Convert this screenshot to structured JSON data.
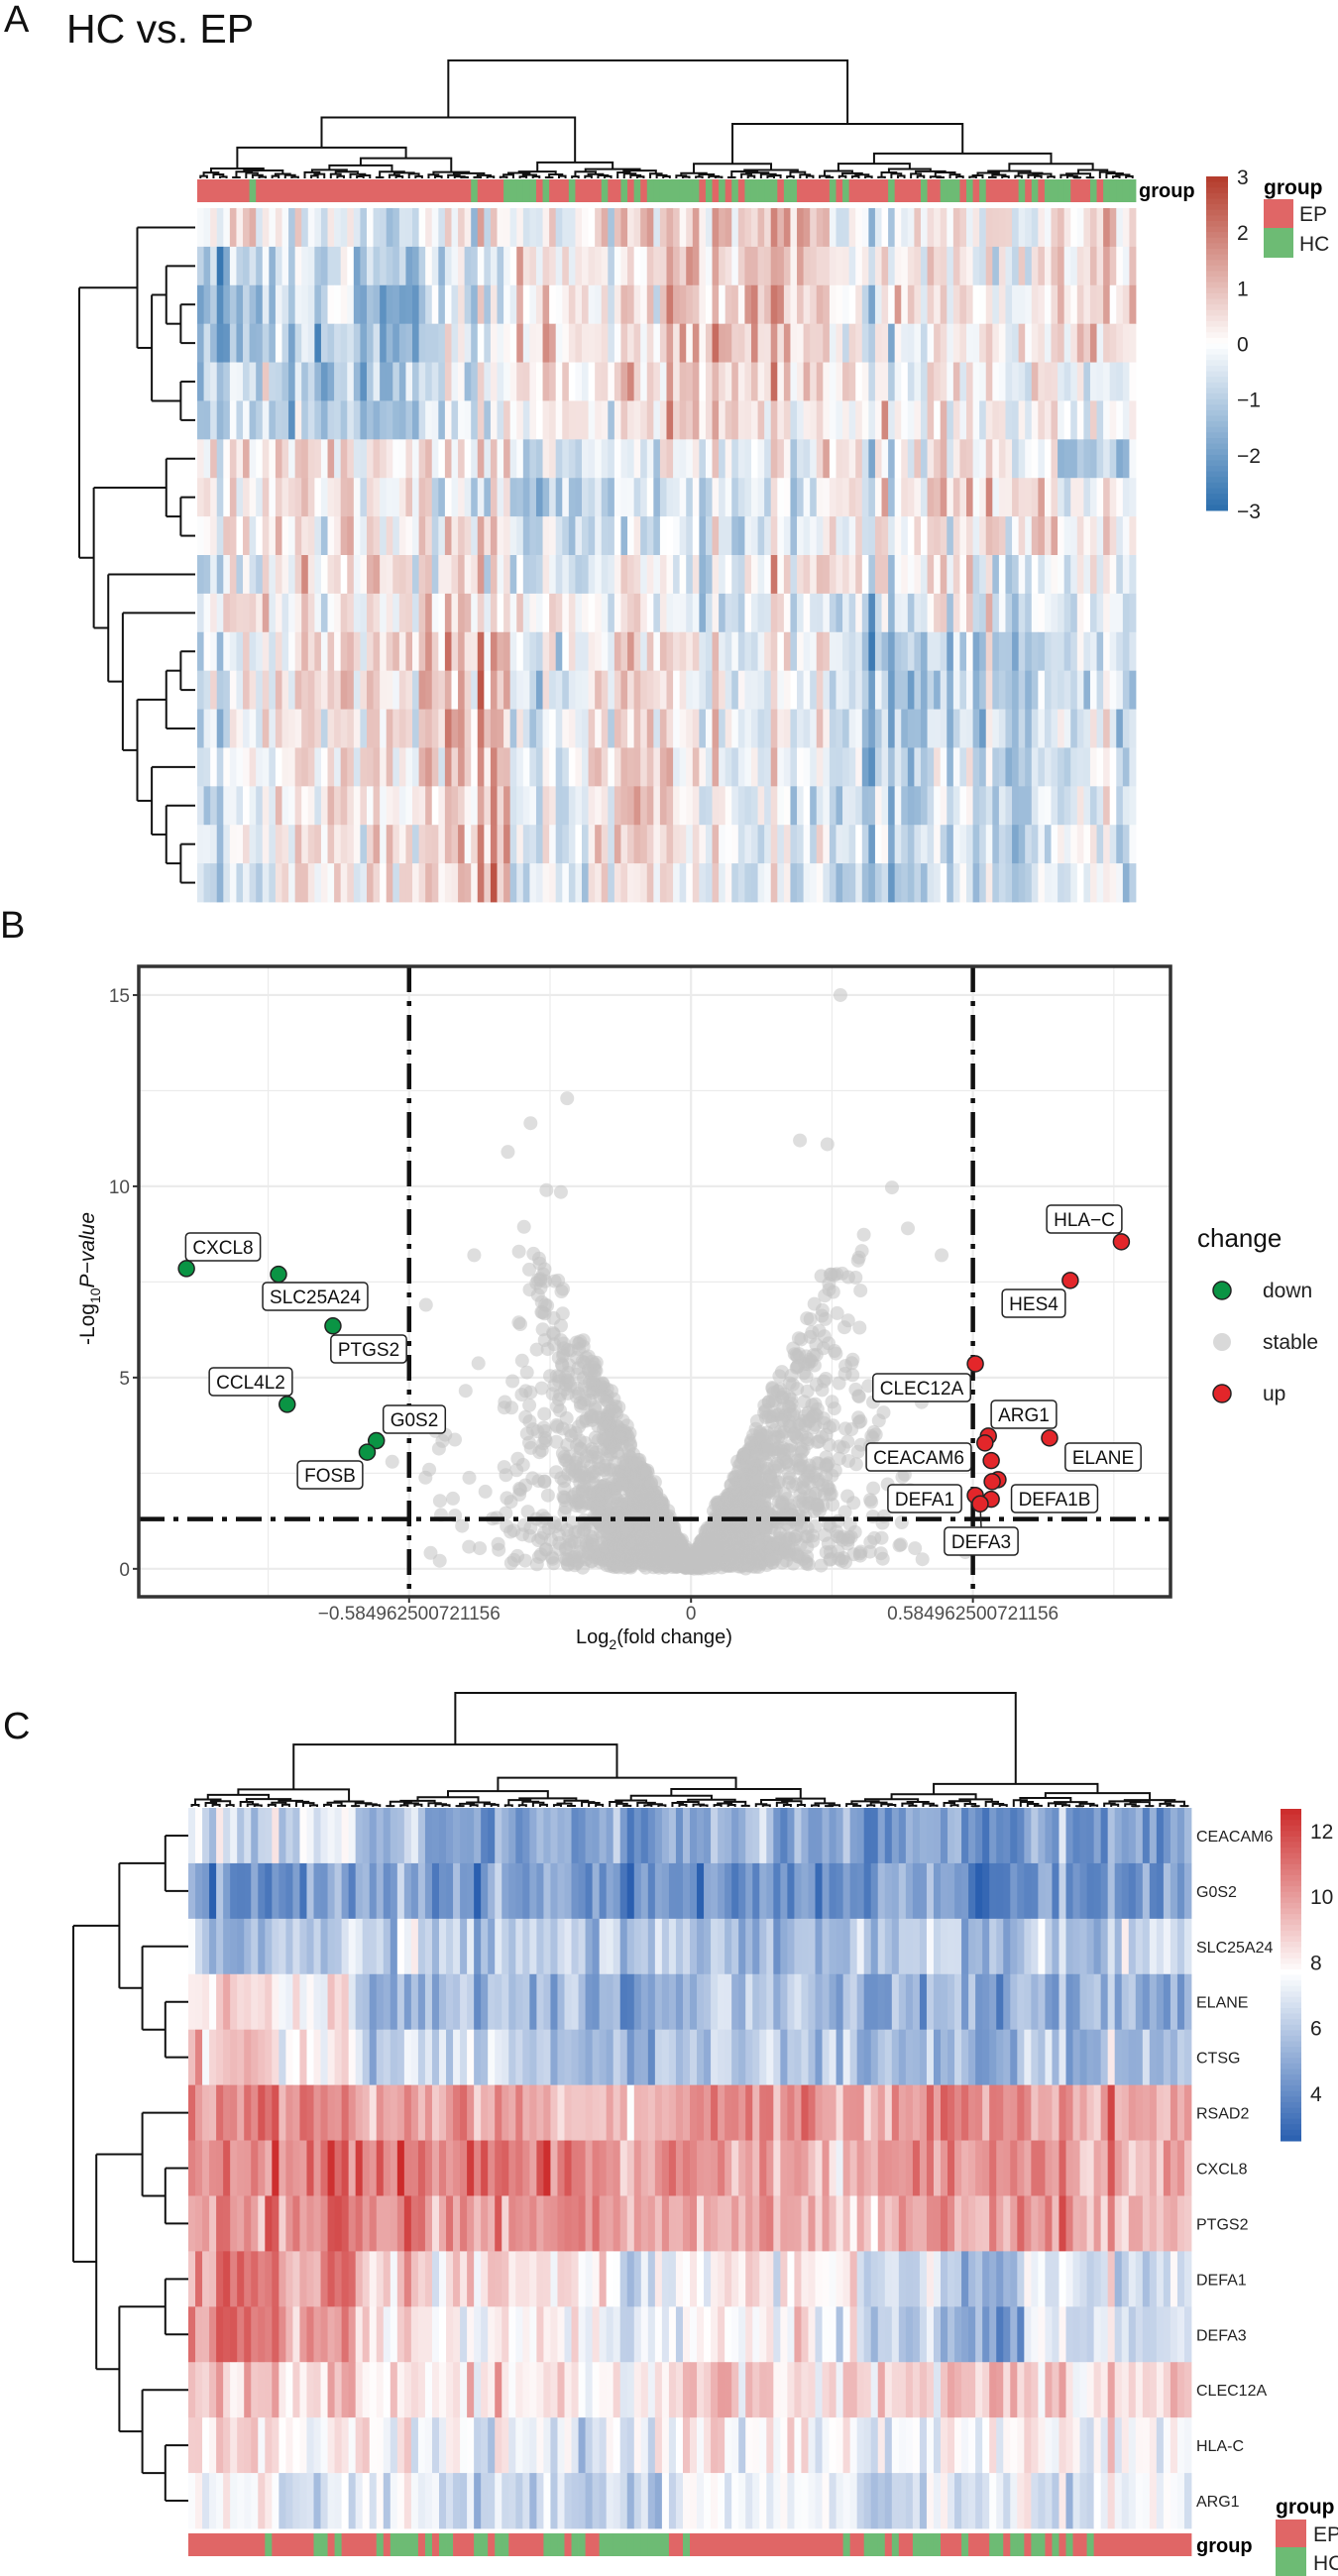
{
  "chart_data": [
    {
      "type": "heatmap",
      "panel_letter": "A",
      "title": "HC vs. EP",
      "annotation_label": "group",
      "legend": {
        "title": "group",
        "items": [
          {
            "label": "EP",
            "color": "#e06666"
          },
          {
            "label": "HC",
            "color": "#6dbb74"
          }
        ]
      },
      "colorbar": {
        "range": [
          -3,
          3
        ],
        "ticks": [
          3,
          2,
          1,
          0,
          -1,
          -2,
          -3
        ],
        "tick_labels": [
          "3",
          "2",
          "1",
          "0",
          "−1",
          "−2",
          "−3"
        ],
        "colors": [
          "#2a6ead",
          "#ffffff",
          "#b43a2a"
        ]
      },
      "group_runs": [
        [
          "EP",
          8
        ],
        [
          "HC",
          1
        ],
        [
          "EP",
          33
        ],
        [
          "HC",
          1
        ],
        [
          "EP",
          4
        ],
        [
          "HC",
          5
        ],
        [
          "EP",
          1
        ],
        [
          "HC",
          1
        ],
        [
          "EP",
          3
        ],
        [
          "HC",
          1
        ],
        [
          "EP",
          4
        ],
        [
          "HC",
          1
        ],
        [
          "EP",
          2
        ],
        [
          "HC",
          1
        ],
        [
          "EP",
          1
        ],
        [
          "HC",
          1
        ],
        [
          "EP",
          1
        ],
        [
          "HC",
          8
        ],
        [
          "EP",
          1
        ],
        [
          "HC",
          1
        ],
        [
          "EP",
          1
        ],
        [
          "HC",
          1
        ],
        [
          "EP",
          1
        ],
        [
          "HC",
          1
        ],
        [
          "EP",
          1
        ],
        [
          "HC",
          5
        ],
        [
          "EP",
          1
        ],
        [
          "HC",
          2
        ],
        [
          "EP",
          5
        ],
        [
          "HC",
          1
        ],
        [
          "EP",
          1
        ],
        [
          "HC",
          1
        ],
        [
          "EP",
          6
        ],
        [
          "HC",
          1
        ],
        [
          "EP",
          4
        ],
        [
          "HC",
          1
        ],
        [
          "EP",
          2
        ],
        [
          "HC",
          3
        ],
        [
          "EP",
          1
        ],
        [
          "HC",
          1
        ],
        [
          "EP",
          1
        ],
        [
          "HC",
          1
        ],
        [
          "EP",
          5
        ],
        [
          "HC",
          1
        ],
        [
          "EP",
          1
        ],
        [
          "HC",
          1
        ],
        [
          "EP",
          1
        ],
        [
          "HC",
          4
        ],
        [
          "EP",
          3
        ],
        [
          "HC",
          1
        ],
        [
          "EP",
          1
        ],
        [
          "HC",
          5
        ]
      ],
      "row_tree": [
        [
          0,
          [
            [
              1,
              [
                2,
                3
              ]
            ],
            [
              4,
              5
            ]
          ]
        ],
        [
          [
            6,
            [
              7,
              8
            ]
          ],
          [
            9,
            [
              10,
              [
                [
                  [
                    11,
                    12
                  ],
                  13
                ],
                [
                  14,
                  [
                    15,
                    [
                      16,
                      17
                    ]
                  ]
                ]
              ]
            ]
          ]
        ]
      ],
      "values": [
        [
          0.3,
          -0.3,
          -0.8,
          -0.3,
          0.2,
          0.5,
          0.6,
          0.8,
          0,
          0.1,
          0,
          0.5
        ],
        [
          -0.8,
          -0.6,
          -1,
          -0.5,
          0.5,
          0.3,
          0.7,
          0.8,
          0.2,
          -0.2,
          0.2,
          0.4
        ],
        [
          -1.3,
          -0.8,
          -1.5,
          -0.4,
          0.6,
          0.5,
          0.6,
          0.7,
          0.2,
          -0.1,
          0.3,
          0.5
        ],
        [
          -1.2,
          -1,
          -1.3,
          -0.5,
          0.6,
          0.4,
          0.8,
          0.6,
          0,
          -0.4,
          0.2,
          0.6
        ],
        [
          -0.5,
          -1.2,
          -0.8,
          -0.2,
          0.6,
          0.5,
          0.8,
          0.4,
          0.3,
          0,
          0.2,
          -0.2
        ],
        [
          -0.6,
          -1,
          -1,
          -0.5,
          0.4,
          0.4,
          0.9,
          0.3,
          0.2,
          0,
          0.2,
          -0.1
        ],
        [
          0.5,
          0.3,
          0.4,
          0.3,
          -0.3,
          -0.2,
          -0.3,
          -0.2,
          0.3,
          0.1,
          0.2,
          -1.2
        ],
        [
          0.3,
          0.4,
          0.2,
          -0.4,
          -0.9,
          -0.5,
          -0.6,
          -0.4,
          0.2,
          0.3,
          0.7,
          -0.3
        ],
        [
          0.3,
          0.2,
          0.4,
          0.3,
          -0.6,
          -0.5,
          -0.7,
          -0.5,
          0.3,
          0.2,
          0.6,
          0.2
        ],
        [
          -0.2,
          0.4,
          0.6,
          0.2,
          -0.4,
          0.3,
          -0.5,
          0.2,
          0.4,
          0.2,
          -0.3,
          -0.4
        ],
        [
          0.6,
          -0.2,
          0.4,
          0.3,
          0.2,
          0.3,
          -0.5,
          -0.5,
          -0.4,
          -0.5,
          -0.4,
          -0.5
        ],
        [
          -0.3,
          0.4,
          0.6,
          1.0,
          -0.2,
          0.6,
          0,
          -0.2,
          -0.7,
          -1.3,
          -0.6,
          -0.5
        ],
        [
          -0.2,
          0.4,
          0.6,
          1.0,
          -0.2,
          0.6,
          0,
          -0.3,
          -0.8,
          -1.4,
          -0.7,
          -0.5
        ],
        [
          -0.2,
          0.3,
          0.5,
          1.0,
          -0.2,
          0.6,
          0,
          -0.3,
          -0.8,
          -1.3,
          -0.7,
          -0.5
        ],
        [
          -0.1,
          0.3,
          0.4,
          0.9,
          -0.3,
          0.8,
          -0.1,
          -0.4,
          -0.7,
          -0.9,
          -0.6,
          -0.4
        ],
        [
          -0.3,
          0.3,
          0.4,
          0.8,
          -0.3,
          0.7,
          0,
          -0.5,
          -0.7,
          -0.9,
          -0.6,
          -0.5
        ],
        [
          -0.2,
          0.3,
          0.4,
          0.8,
          -0.3,
          0.6,
          0,
          -0.4,
          -0.6,
          -0.9,
          -0.6,
          -0.4
        ],
        [
          -0.3,
          0.3,
          0.6,
          1.0,
          -0.3,
          0.6,
          -0.2,
          -0.4,
          -0.8,
          -1.0,
          -0.6,
          -0.4
        ]
      ]
    },
    {
      "type": "scatter",
      "panel_letter": "B",
      "xlabel": {
        "prefix": "Log",
        "subscript": "2",
        "main": "(fold change)"
      },
      "ylabel": {
        "prefix": "-Log",
        "subscript": "10",
        "main": "P−value"
      },
      "xlim": [
        -1.146,
        0.995
      ],
      "ylim": [
        -0.73,
        15.75
      ],
      "x_ticks": [
        -0.584962500721156,
        0,
        0.584962500721156
      ],
      "x_tick_labels": [
        "−0.584962500721156",
        "0",
        "0.584962500721156"
      ],
      "y_ticks": [
        0,
        5,
        10,
        15
      ],
      "y_tick_labels": [
        "0",
        "5",
        "10",
        "15"
      ],
      "grid": true,
      "thresholds": {
        "x": [
          -0.584962500721156,
          0.584962500721156
        ],
        "y": 1.30103
      },
      "legend": {
        "title": "change",
        "position": "right",
        "items": [
          {
            "label": "down",
            "color": "#0a9444"
          },
          {
            "label": "stable",
            "color": "#d9d9d9"
          },
          {
            "label": "up",
            "color": "#e3262a"
          }
        ]
      },
      "down": [
        {
          "gene": "CXCL8",
          "x": -1.047,
          "y": 7.85
        },
        {
          "gene": "SLC25A24",
          "x": -0.856,
          "y": 7.7
        },
        {
          "gene": "PTGS2",
          "x": -0.743,
          "y": 6.35
        },
        {
          "gene": "CCL4L2",
          "x": -0.838,
          "y": 4.3
        },
        {
          "gene": "G0S2",
          "x": -0.653,
          "y": 3.35
        },
        {
          "gene": "FOSB",
          "x": -0.672,
          "y": 3.05
        }
      ],
      "up": [
        {
          "gene": "HLA−C",
          "x": 0.893,
          "y": 8.55
        },
        {
          "gene": "HES4",
          "x": 0.787,
          "y": 7.54
        },
        {
          "gene": "CLEC12A",
          "x": 0.59,
          "y": 5.36
        },
        {
          "gene": "ARG1",
          "x": 0.617,
          "y": 3.47
        },
        {
          "gene": "CEACAM6",
          "x": 0.61,
          "y": 3.29
        },
        {
          "gene": "ELANE",
          "x": 0.744,
          "y": 3.42
        },
        {
          "gene": "",
          "x": 0.623,
          "y": 2.83
        },
        {
          "gene": "DEFA1B",
          "x": 0.637,
          "y": 2.33
        },
        {
          "gene": "",
          "x": 0.625,
          "y": 2.28
        },
        {
          "gene": "DEFA1",
          "x": 0.59,
          "y": 1.92
        },
        {
          "gene": "",
          "x": 0.623,
          "y": 1.82
        },
        {
          "gene": "DEFA3",
          "x": 0.6,
          "y": 1.7
        }
      ],
      "stable_highlights": [
        {
          "x": 0.31,
          "y": 15.0
        },
        {
          "x": -0.257,
          "y": 12.3
        },
        {
          "x": -0.333,
          "y": 11.65
        },
        {
          "x": -0.38,
          "y": 10.9
        },
        {
          "x": 0.226,
          "y": 11.2
        },
        {
          "x": 0.283,
          "y": 11.1
        },
        {
          "x": 0.417,
          "y": 9.97
        },
        {
          "x": 0.52,
          "y": 8.2
        },
        {
          "x": -0.3,
          "y": 9.9
        },
        {
          "x": -0.27,
          "y": 9.85
        },
        {
          "x": -0.45,
          "y": 8.2
        },
        {
          "x": -0.55,
          "y": 6.9
        },
        {
          "x": 0.45,
          "y": 8.9
        },
        {
          "x": -0.62,
          "y": 2.8
        },
        {
          "x": -0.53,
          "y": 3.6
        }
      ]
    },
    {
      "type": "heatmap",
      "panel_letter": "C",
      "annotation_label": "group",
      "legend": {
        "title": "group",
        "items": [
          {
            "label": "EP",
            "color": "#e06666"
          },
          {
            "label": "HC",
            "color": "#6dbb74"
          }
        ]
      },
      "colorbar": {
        "range": [
          2.55,
          12.66
        ],
        "ticks": [
          12,
          10,
          8,
          6,
          4
        ],
        "tick_labels": [
          "12",
          "10",
          "8",
          "6",
          "4"
        ],
        "midpoint": 7.68,
        "colors": [
          "#2a5fb0",
          "#ffffff",
          "#cc2a2a"
        ]
      },
      "rows": [
        "CEACAM6",
        "G0S2",
        "SLC25A24",
        "ELANE",
        "CTSG",
        "RSAD2",
        "CXCL8",
        "PTGS2",
        "DEFA1",
        "DEFA3",
        "CLEC12A",
        "HLA-C",
        "ARG1"
      ],
      "group_runs": [
        [
          "EP",
          11
        ],
        [
          "HC",
          1
        ],
        [
          "EP",
          6
        ],
        [
          "HC",
          2
        ],
        [
          "EP",
          1
        ],
        [
          "HC",
          1
        ],
        [
          "EP",
          5
        ],
        [
          "HC",
          1
        ],
        [
          "EP",
          1
        ],
        [
          "HC",
          4
        ],
        [
          "EP",
          1
        ],
        [
          "HC",
          1
        ],
        [
          "EP",
          1
        ],
        [
          "HC",
          2
        ],
        [
          "EP",
          3
        ],
        [
          "HC",
          2
        ],
        [
          "EP",
          1
        ],
        [
          "HC",
          2
        ],
        [
          "EP",
          5
        ],
        [
          "HC",
          3
        ],
        [
          "EP",
          1
        ],
        [
          "HC",
          2
        ],
        [
          "EP",
          2
        ],
        [
          "HC",
          10
        ],
        [
          "EP",
          2
        ],
        [
          "HC",
          1
        ],
        [
          "EP",
          22
        ],
        [
          "HC",
          1
        ],
        [
          "EP",
          2
        ],
        [
          "HC",
          3
        ],
        [
          "EP",
          1
        ],
        [
          "HC",
          1
        ],
        [
          "EP",
          2
        ],
        [
          "HC",
          4
        ],
        [
          "EP",
          3
        ],
        [
          "HC",
          1
        ],
        [
          "EP",
          3
        ],
        [
          "HC",
          2
        ],
        [
          "EP",
          1
        ],
        [
          "HC",
          2
        ],
        [
          "EP",
          1
        ],
        [
          "HC",
          2
        ],
        [
          "EP",
          1
        ],
        [
          "HC",
          1
        ],
        [
          "EP",
          1
        ],
        [
          "HC",
          1
        ],
        [
          "EP",
          2
        ],
        [
          "HC",
          1
        ],
        [
          "EP",
          14
        ]
      ],
      "row_tree": [
        [
          [
            0,
            1
          ],
          [
            2,
            [
              3,
              4
            ]
          ]
        ],
        [
          [
            5,
            [
              6,
              7
            ]
          ],
          [
            [
              8,
              9
            ],
            [
              10,
              [
                11,
                12
              ]
            ]
          ]
        ]
      ],
      "values": [
        [
          6.5,
          7,
          5,
          4.8,
          4.8,
          5,
          5.2,
          5,
          4.8,
          4.5,
          4.7,
          4.8
        ],
        [
          4,
          4.5,
          4.8,
          4.6,
          5,
          5,
          4,
          4.2,
          4.6,
          4,
          4.3,
          4.3
        ],
        [
          5.5,
          6,
          6.5,
          6,
          6,
          6.5,
          5.5,
          5.5,
          6,
          5.5,
          6,
          6.2
        ],
        [
          8.5,
          7.8,
          5.5,
          5.8,
          5.5,
          5.5,
          5.8,
          6,
          4.8,
          5,
          5,
          5.2
        ],
        [
          9,
          8.2,
          6,
          6.2,
          5.8,
          5.8,
          6,
          6.2,
          5.2,
          5.2,
          5.5,
          5.5
        ],
        [
          10.5,
          10.5,
          9.5,
          10,
          9.5,
          9.5,
          10.5,
          10,
          9.5,
          10.5,
          10,
          9.5
        ],
        [
          10.5,
          11,
          10.5,
          11,
          10.8,
          10.5,
          9.8,
          9.5,
          9.8,
          10.3,
          10,
          9.5
        ],
        [
          10,
          10.5,
          10,
          10.3,
          10.2,
          10,
          9.5,
          9.5,
          9.5,
          9.8,
          9.8,
          9.5
        ],
        [
          10.5,
          10,
          8.5,
          8.5,
          8.3,
          7.5,
          8.2,
          8,
          6.5,
          5.5,
          7,
          6.5
        ],
        [
          10.5,
          10,
          8,
          8,
          8,
          7.3,
          8,
          7.8,
          6.2,
          5,
          7,
          6.5
        ],
        [
          8.5,
          9,
          8,
          8.5,
          8.2,
          8.5,
          9,
          8.5,
          8.5,
          9,
          8.5,
          8.8
        ],
        [
          8.5,
          7.8,
          7.8,
          7.5,
          7,
          7.8,
          8,
          7.8,
          7.2,
          7.8,
          7.5,
          7.8
        ],
        [
          7.5,
          7,
          7.3,
          6.5,
          6.5,
          7,
          7.5,
          7.6,
          6.5,
          7,
          6.8,
          7.2
        ]
      ]
    }
  ]
}
